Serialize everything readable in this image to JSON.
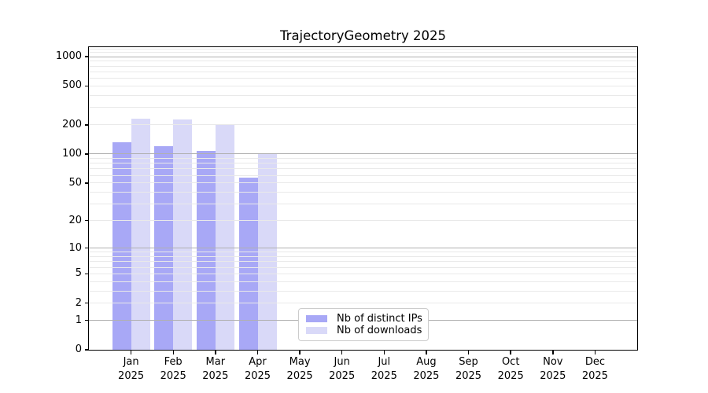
{
  "chart_data": {
    "type": "bar",
    "title": "TrajectoryGeometry 2025",
    "x": {
      "months": [
        "Jan",
        "Feb",
        "Mar",
        "Apr",
        "May",
        "Jun",
        "Jul",
        "Aug",
        "Sep",
        "Oct",
        "Nov",
        "Dec"
      ],
      "year": "2025"
    },
    "series": [
      {
        "name": "Nb of distinct IPs",
        "color": "#a8a8f6",
        "values": [
          132,
          120,
          107,
          57,
          0,
          0,
          0,
          0,
          0,
          0,
          0,
          0
        ]
      },
      {
        "name": "Nb of downloads",
        "color": "#d9d9f8",
        "values": [
          230,
          225,
          200,
          100,
          0,
          0,
          0,
          0,
          0,
          0,
          0,
          0
        ]
      }
    ],
    "y_axis": {
      "scale": "log1p",
      "ticks": [
        0,
        1,
        2,
        5,
        10,
        20,
        50,
        100,
        200,
        500,
        1000
      ],
      "major_gridlines": [
        1,
        10,
        100,
        1000
      ],
      "range": [
        0,
        1250
      ]
    },
    "legend": {
      "position": "lower center inside plot",
      "entries": [
        "Nb of distinct IPs",
        "Nb of downloads"
      ]
    },
    "grid": {
      "major_color": "#b0b0b0",
      "minor_color": "#e9e9e9",
      "drawn_above_bars": true
    },
    "colors": {
      "background": "#ffffff",
      "spine": "#000000"
    }
  }
}
